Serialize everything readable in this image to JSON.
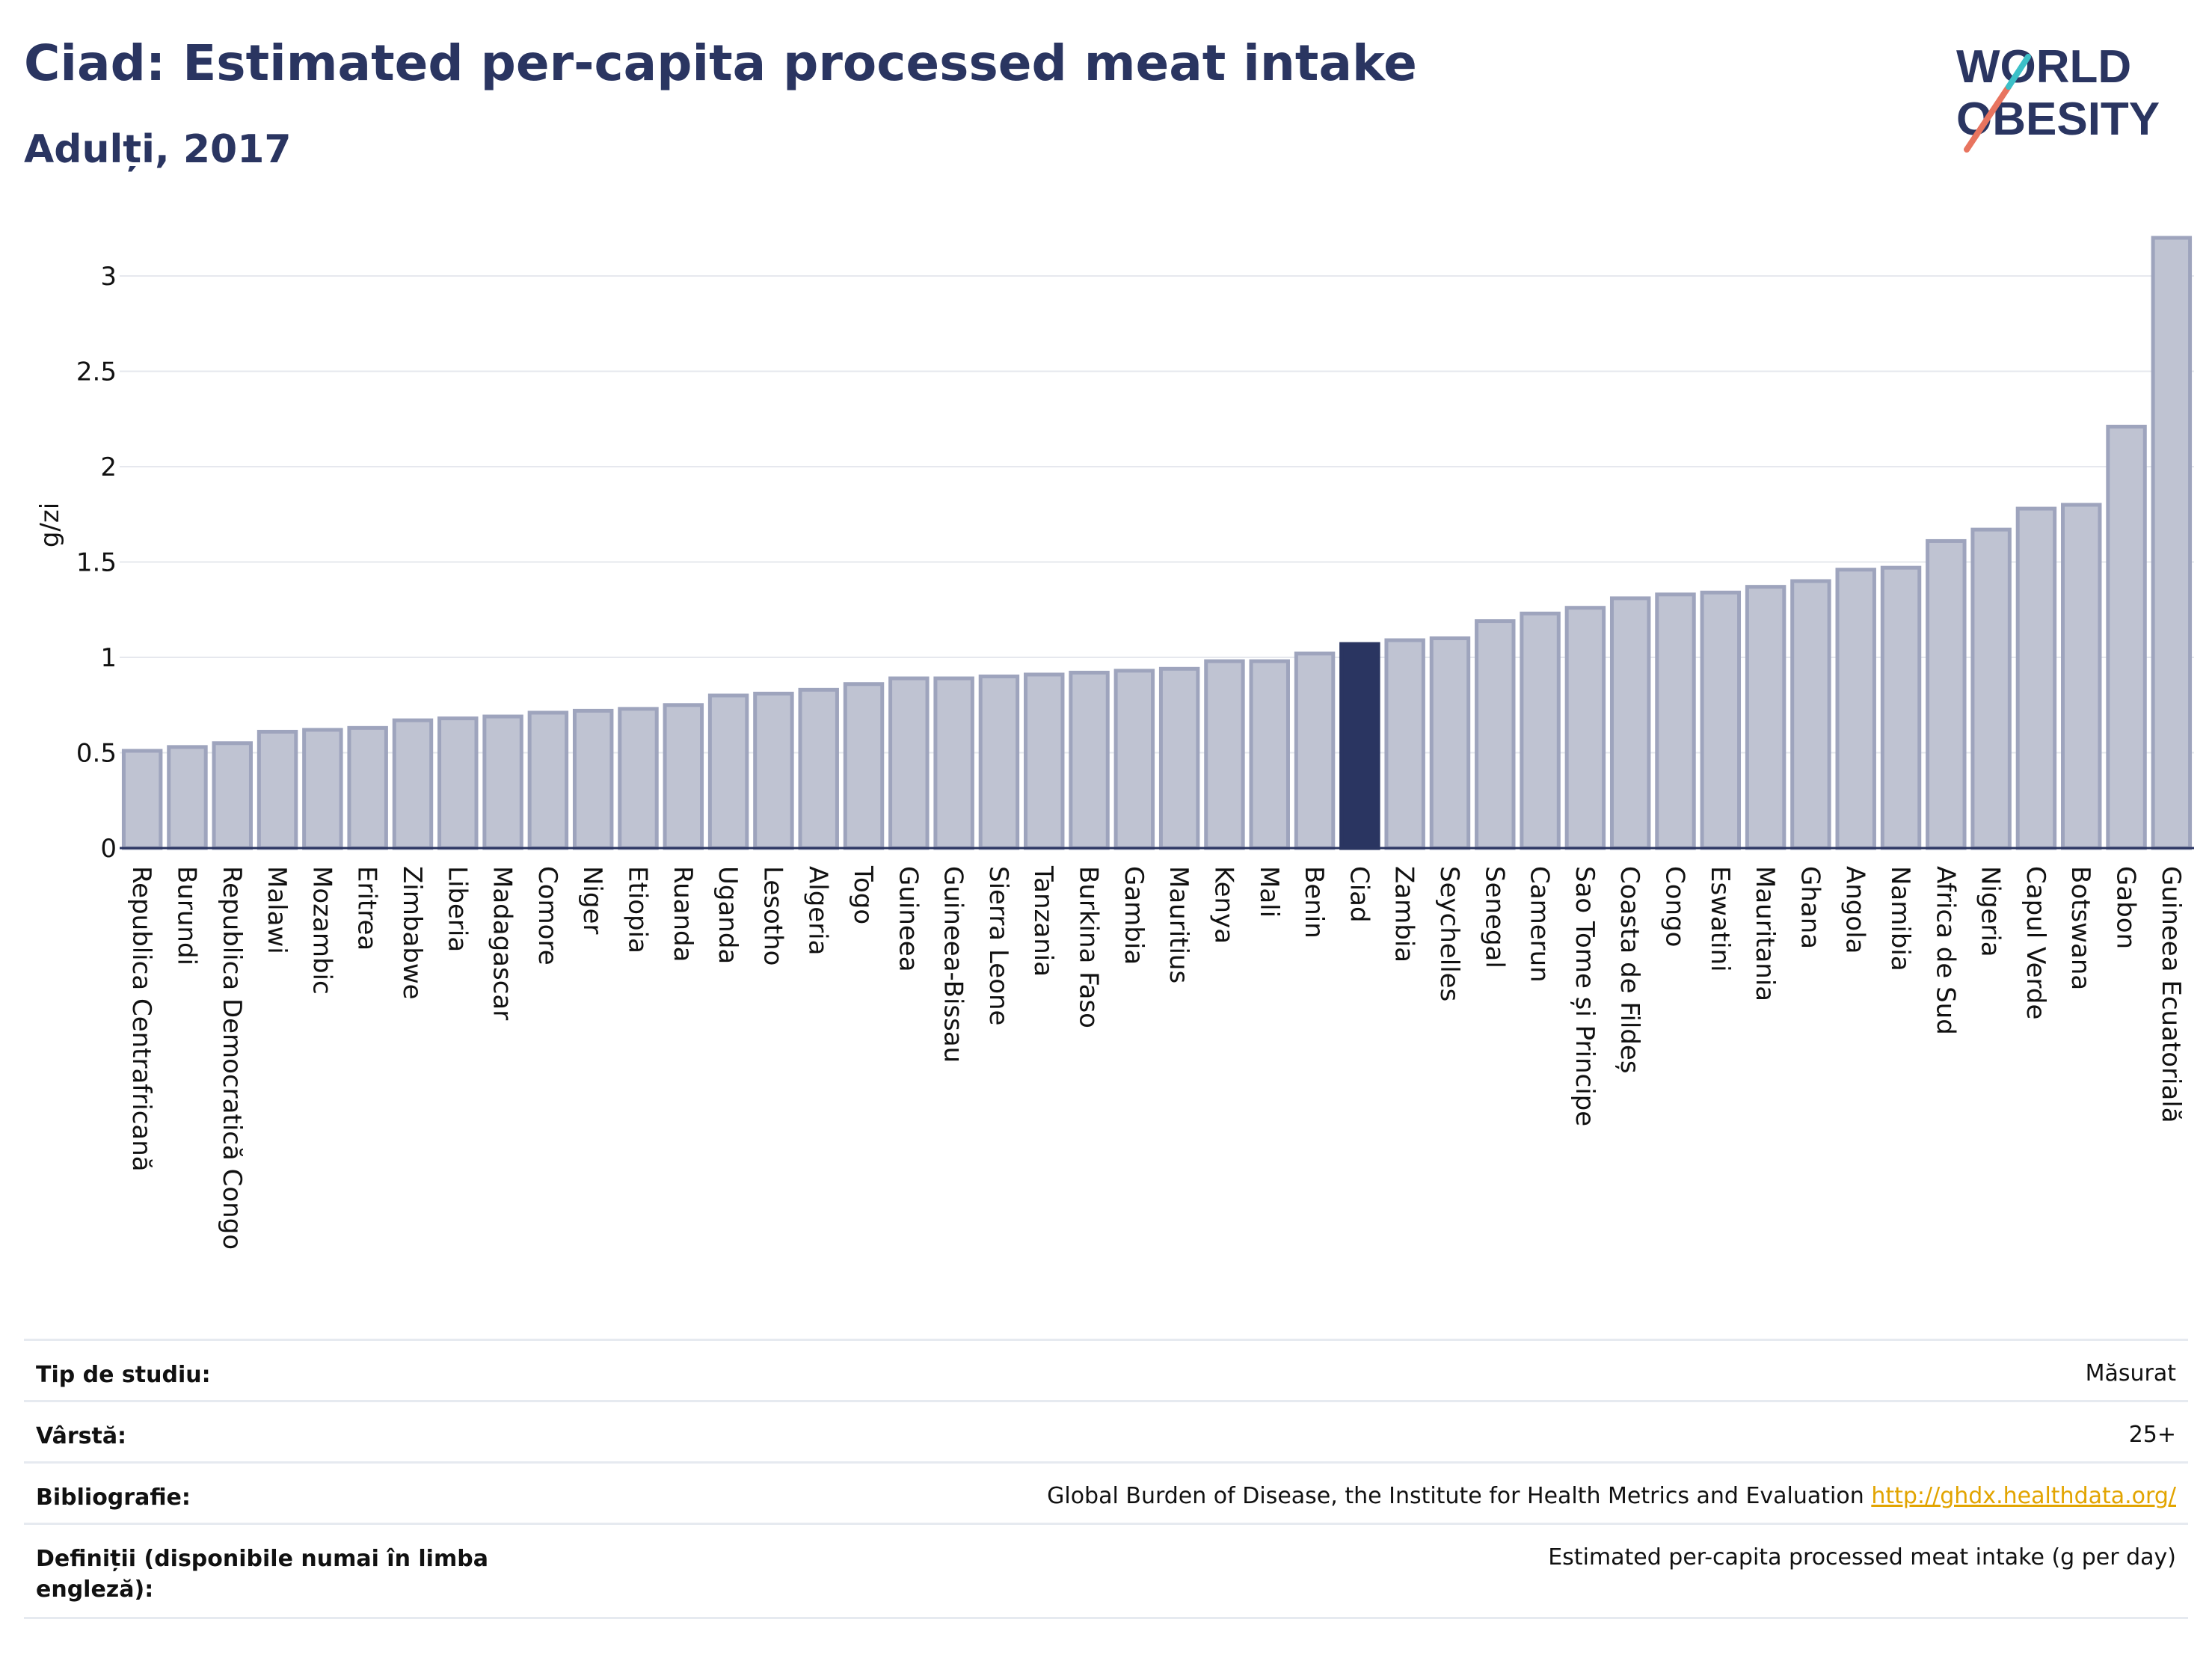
{
  "header": {
    "title": "Ciad: Estimated per-capita processed meat intake",
    "subtitle": "Adulți, 2017"
  },
  "logo": {
    "line1": "WORLD",
    "line2": "OBESITY"
  },
  "chart_data": {
    "type": "bar",
    "ylabel": "g/zi",
    "ylim": [
      0,
      3.3
    ],
    "yticks": [
      0,
      0.5,
      1,
      1.5,
      2,
      2.5,
      3
    ],
    "ytick_labels": [
      "0",
      "0.5",
      "1",
      "1.5",
      "2",
      "2.5",
      "3"
    ],
    "highlight": "Ciad",
    "colors": {
      "bar": "#bfc3d2",
      "bar_edge": "#9ea4bd",
      "highlight": "#2a3561"
    },
    "categories": [
      "Republica Centrafricană",
      "Burundi",
      "Republica Democratică Congo",
      "Malawi",
      "Mozambic",
      "Eritrea",
      "Zimbabwe",
      "Liberia",
      "Madagascar",
      "Comore",
      "Niger",
      "Etiopia",
      "Ruanda",
      "Uganda",
      "Lesotho",
      "Algeria",
      "Togo",
      "Guineea",
      "Guineea-Bissau",
      "Sierra Leone",
      "Tanzania",
      "Burkina Faso",
      "Gambia",
      "Mauritius",
      "Kenya",
      "Mali",
      "Benin",
      "Ciad",
      "Zambia",
      "Seychelles",
      "Senegal",
      "Camerun",
      "Sao Tome și Principe",
      "Coasta de Fildeș",
      "Congo",
      "Eswatini",
      "Mauritania",
      "Ghana",
      "Angola",
      "Namibia",
      "Africa de Sud",
      "Nigeria",
      "Capul Verde",
      "Botswana",
      "Gabon",
      "Guineea Ecuatorială"
    ],
    "values": [
      0.51,
      0.53,
      0.55,
      0.61,
      0.62,
      0.63,
      0.67,
      0.68,
      0.69,
      0.71,
      0.72,
      0.73,
      0.75,
      0.8,
      0.81,
      0.83,
      0.86,
      0.89,
      0.89,
      0.9,
      0.91,
      0.92,
      0.93,
      0.94,
      0.98,
      0.98,
      1.02,
      1.07,
      1.09,
      1.1,
      1.19,
      1.23,
      1.26,
      1.31,
      1.33,
      1.34,
      1.37,
      1.4,
      1.46,
      1.47,
      1.61,
      1.67,
      1.78,
      1.8,
      2.21,
      3.2
    ]
  },
  "info": {
    "rows": [
      {
        "label": "Tip de studiu:",
        "value": "Măsurat"
      },
      {
        "label": "Vârstă:",
        "value": "25+"
      },
      {
        "label": "Bibliografie:",
        "value": "Global Burden of Disease, the Institute for Health Metrics and Evaluation",
        "link": "http://ghdx.healthdata.org/"
      },
      {
        "label": "Definiții (disponibile numai în limba engleză):",
        "value": "Estimated per-capita processed meat intake (g per day)"
      }
    ]
  }
}
